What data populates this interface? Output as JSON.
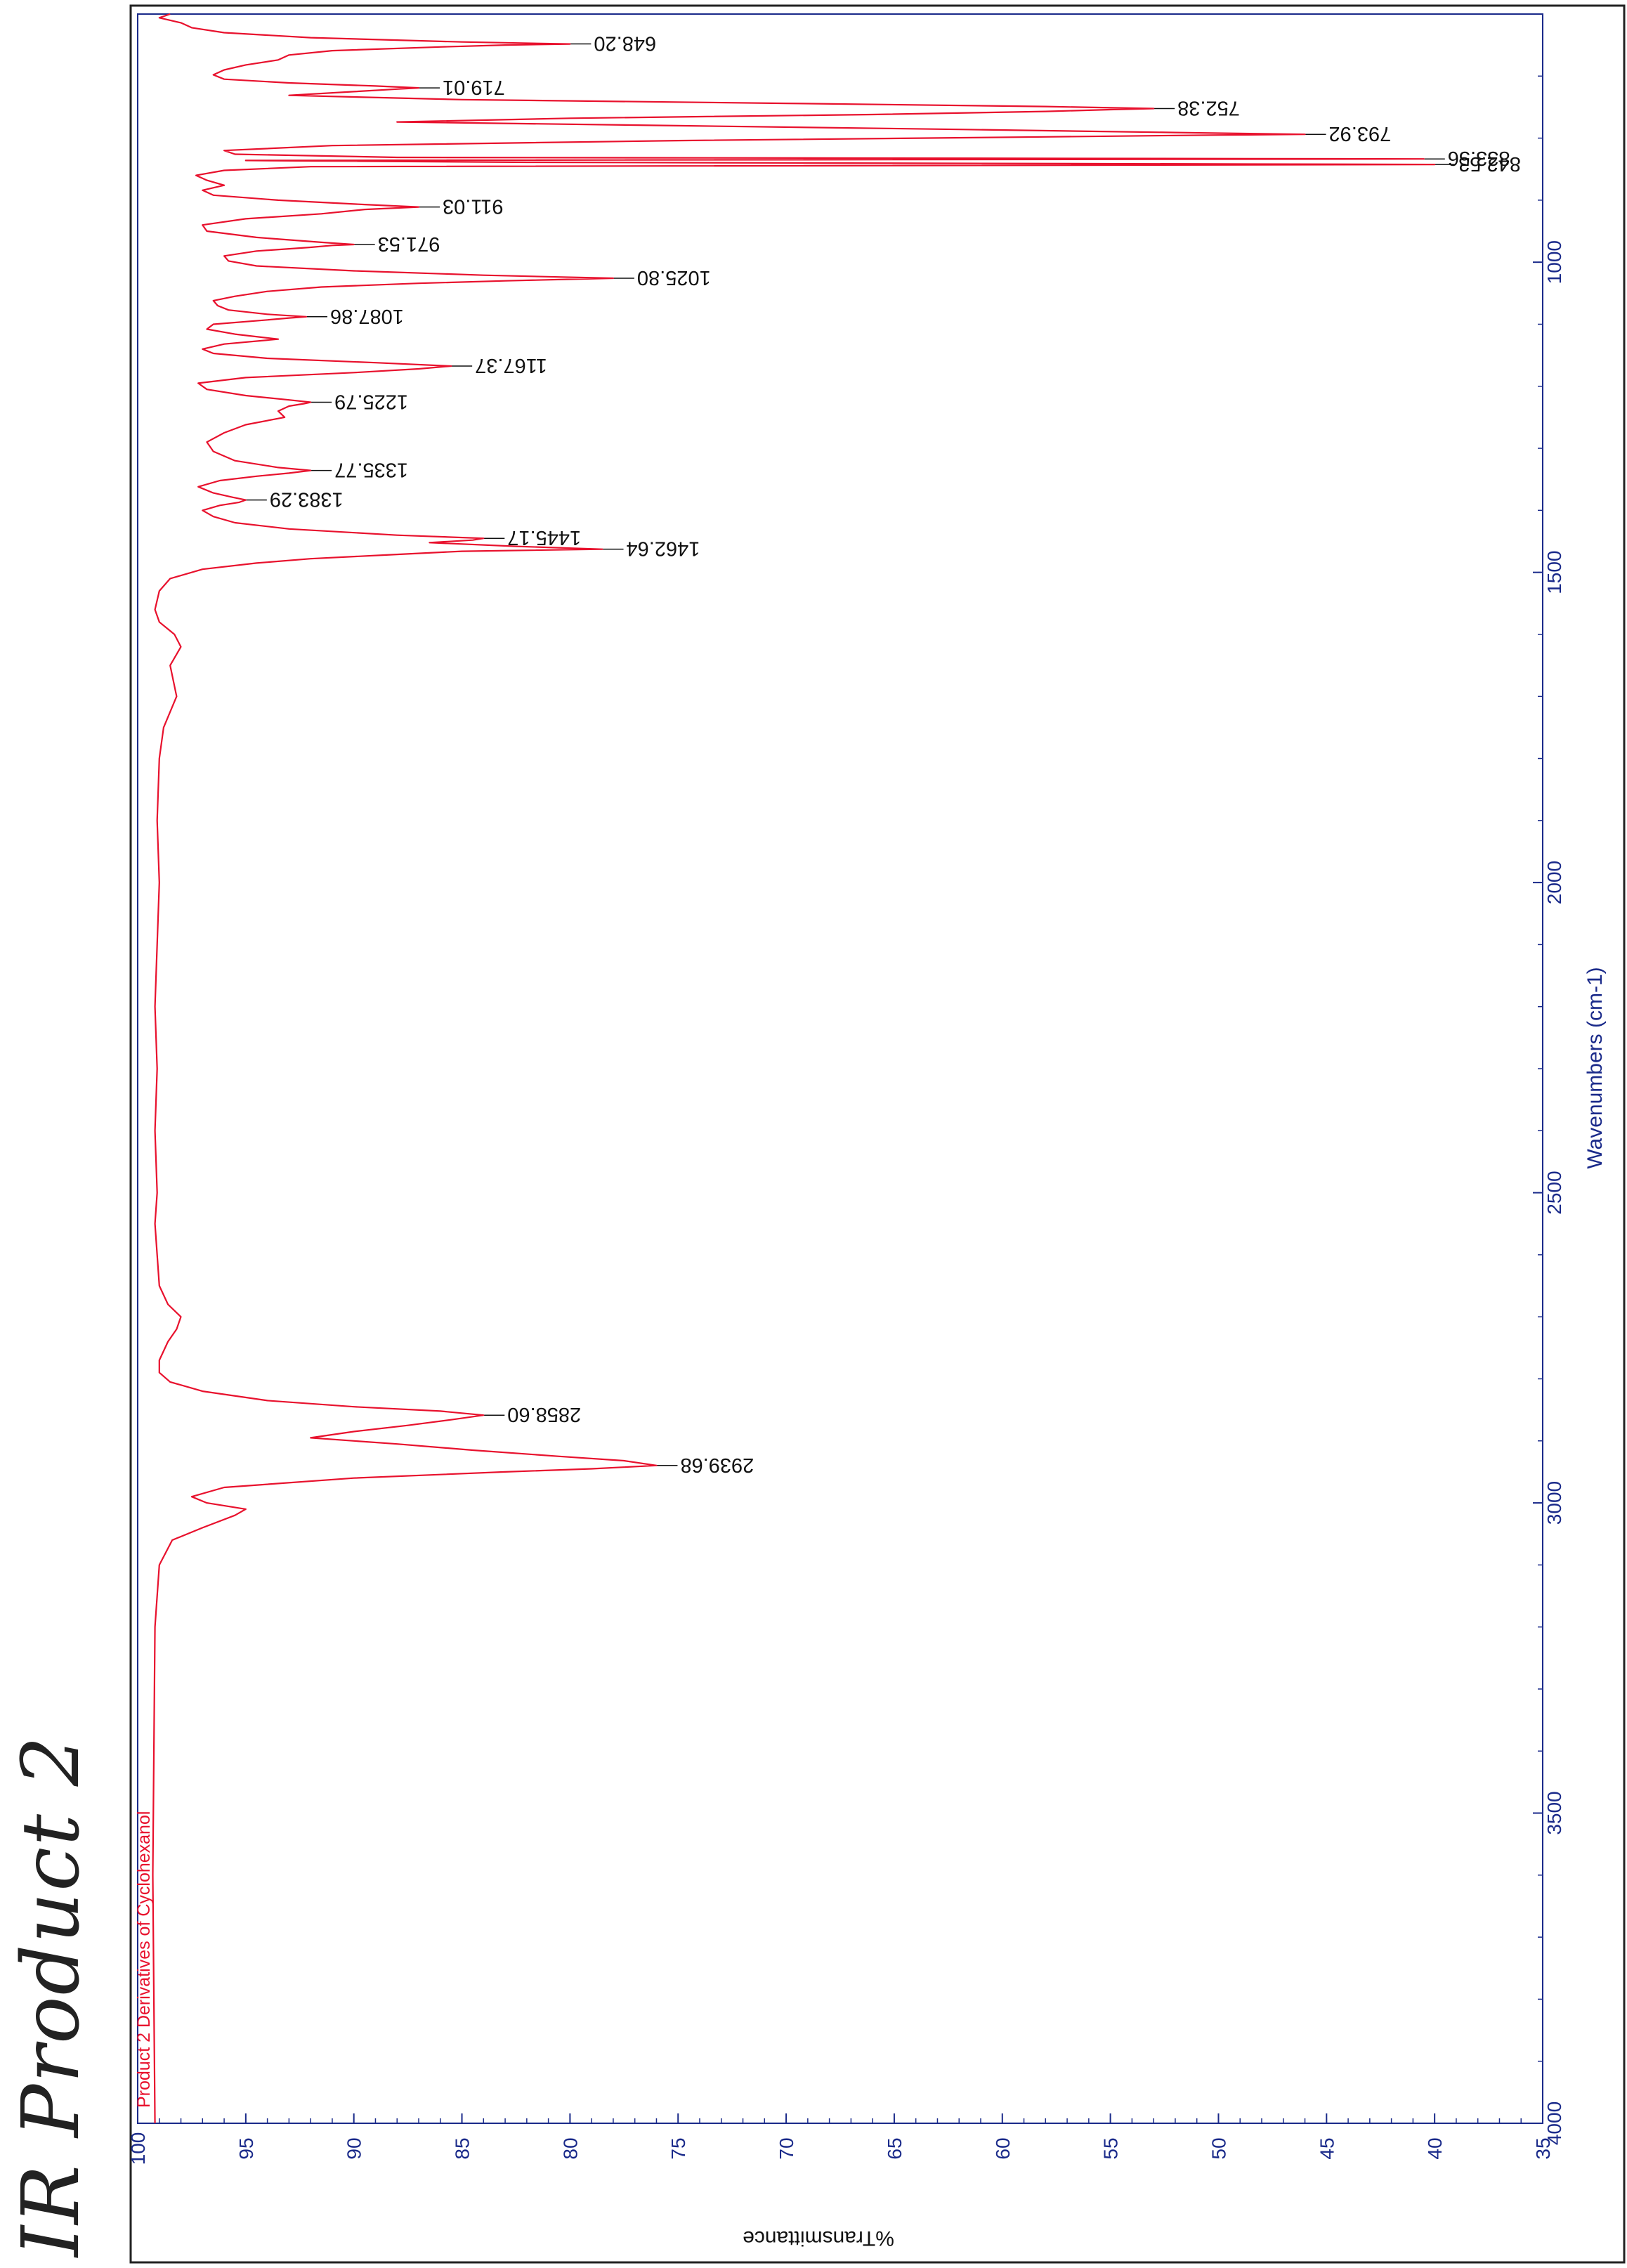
{
  "page": {
    "handwritten_title": "IR Product 2"
  },
  "chart_data": {
    "type": "line",
    "title": "",
    "sample_name": "Product 2 Derivatives of Cyclohexanol",
    "xlabel": "Wavenumbers (cm-1)",
    "ylabel": "%Transmittance",
    "xlim": [
      4000,
      600
    ],
    "ylim": [
      35,
      100
    ],
    "x_ticks": [
      "4000",
      "3500",
      "3000",
      "2500",
      "2000",
      "1500",
      "1000"
    ],
    "y_ticks": [
      "100",
      "95",
      "90",
      "85",
      "80",
      "75",
      "70",
      "65",
      "60",
      "55",
      "50",
      "45",
      "40",
      "35"
    ],
    "grid": false,
    "colors": {
      "spectrum": "#e8112d",
      "axis": "#1a2a8a",
      "frame": "#222222",
      "annotation": "#111111"
    },
    "series": [
      {
        "name": "Product 2 Derivatives of Cyclohexanol",
        "x": [
          4000,
          3600,
          3200,
          3100,
          3060,
          3040,
          3020,
          3010,
          3000,
          2990,
          2975,
          2960,
          2950,
          2945,
          2939.68,
          2932,
          2925,
          2915,
          2905,
          2895,
          2885,
          2875,
          2866,
          2858.6,
          2852,
          2845,
          2835,
          2820,
          2805,
          2790,
          2770,
          2740,
          2720,
          2700,
          2680,
          2650,
          2600,
          2550,
          2500,
          2400,
          2300,
          2200,
          2100,
          2000,
          1900,
          1800,
          1750,
          1700,
          1650,
          1620,
          1600,
          1580,
          1560,
          1530,
          1510,
          1495,
          1485,
          1478,
          1472,
          1466,
          1462.64,
          1458,
          1452,
          1448,
          1445.17,
          1440,
          1430,
          1420,
          1410,
          1400,
          1392,
          1387,
          1383.29,
          1379,
          1372,
          1362,
          1352,
          1345,
          1340,
          1335.77,
          1331,
          1320,
          1305,
          1290,
          1275,
          1262,
          1250,
          1240,
          1232,
          1228,
          1225.79,
          1222,
          1215,
          1205,
          1195,
          1186,
          1178,
          1172,
          1167.37,
          1162,
          1155,
          1147,
          1140,
          1132,
          1124,
          1116,
          1108,
          1100,
          1093,
          1090,
          1087.86,
          1084,
          1077,
          1070,
          1062,
          1055,
          1047,
          1040,
          1034,
          1030,
          1025.8,
          1021,
          1014,
          1006,
          998,
          990,
          982,
          976,
          973,
          971.53,
          968,
          960,
          950,
          940,
          930,
          922,
          915,
          911.03,
          907,
          900,
          892,
          884,
          876,
          868,
          860,
          852,
          846,
          842.53,
          839,
          836,
          833.56,
          831,
          826,
          820,
          812,
          804,
          798,
          795,
          793.92,
          791,
          786,
          780,
          774,
          768,
          762,
          757,
          754,
          752.38,
          749,
          744,
          738,
          731,
          725,
          721,
          719.01,
          716,
          711,
          705,
          698,
          690,
          682,
          674,
          666,
          659,
          653,
          650,
          648.2,
          645,
          638,
          630,
          622,
          614,
          606,
          600
        ],
        "values": [
          99.2,
          99.3,
          99.2,
          99.0,
          98.4,
          97.0,
          95.5,
          95.0,
          96.8,
          97.5,
          96.0,
          90.0,
          83.0,
          79.0,
          76.0,
          77.5,
          80.5,
          84.5,
          88.0,
          92.0,
          90.0,
          87.5,
          85.5,
          84.0,
          86.0,
          90.0,
          94.0,
          97.0,
          98.5,
          99.0,
          99.0,
          98.6,
          98.2,
          98.0,
          98.6,
          99.0,
          99.1,
          99.2,
          99.1,
          99.2,
          99.1,
          99.2,
          99.1,
          99.0,
          99.1,
          99.0,
          98.8,
          98.2,
          98.5,
          98.0,
          98.3,
          99.0,
          99.2,
          99.0,
          98.5,
          97.0,
          94.5,
          92.0,
          88.5,
          85.0,
          78.5,
          82.5,
          86.5,
          84.5,
          84.0,
          88.0,
          93.0,
          95.5,
          96.5,
          97.0,
          96.2,
          95.3,
          95.0,
          95.6,
          96.5,
          97.2,
          96.2,
          94.5,
          93.0,
          92.0,
          93.5,
          95.5,
          96.5,
          96.8,
          96.0,
          95.0,
          93.2,
          93.5,
          93.0,
          92.3,
          92.0,
          93.0,
          95.0,
          96.8,
          97.2,
          95.0,
          90.0,
          87.0,
          85.5,
          89.0,
          94.0,
          96.5,
          97.0,
          96.0,
          93.5,
          95.5,
          96.8,
          96.5,
          94.0,
          93.0,
          92.2,
          94.0,
          95.8,
          96.3,
          96.5,
          95.5,
          94.0,
          91.5,
          87.0,
          83.0,
          78.0,
          84.0,
          90.0,
          94.5,
          95.8,
          96.0,
          94.5,
          92.0,
          91.0,
          90.0,
          91.5,
          94.5,
          96.8,
          97.0,
          95.0,
          91.5,
          89.5,
          87.0,
          89.5,
          93.5,
          96.5,
          97.0,
          96.0,
          96.8,
          97.3,
          96.0,
          92.0,
          40.0,
          82.0,
          95.0,
          40.5,
          88.0,
          95.5,
          96.0,
          91.0,
          75.0,
          58.0,
          50.0,
          46.0,
          52.0,
          62.0,
          75.0,
          88.0,
          80.0,
          66.0,
          58.0,
          55.0,
          53.0,
          58.0,
          70.0,
          85.0,
          93.0,
          90.0,
          88.0,
          87.0,
          89.0,
          93.0,
          96.0,
          96.5,
          96.0,
          95.0,
          93.5,
          93.0,
          91.0,
          86.0,
          83.0,
          80.0,
          85.0,
          92.0,
          96.0,
          97.5,
          98.0,
          99.0,
          98.5
        ]
      }
    ],
    "annotations": [
      {
        "label": "2939.68",
        "x": 2939.68,
        "y": 76.0
      },
      {
        "label": "2858.60",
        "x": 2858.6,
        "y": 84.0
      },
      {
        "label": "1462.64",
        "x": 1462.64,
        "y": 78.5
      },
      {
        "label": "1445.17",
        "x": 1445.17,
        "y": 84.0
      },
      {
        "label": "1383.29",
        "x": 1383.29,
        "y": 95.0
      },
      {
        "label": "1335.77",
        "x": 1335.77,
        "y": 92.0
      },
      {
        "label": "1225.79",
        "x": 1225.79,
        "y": 92.0
      },
      {
        "label": "1167.37",
        "x": 1167.37,
        "y": 85.5
      },
      {
        "label": "1087.86",
        "x": 1087.86,
        "y": 92.2
      },
      {
        "label": "1025.80",
        "x": 1025.8,
        "y": 78.0
      },
      {
        "label": "971.53",
        "x": 971.53,
        "y": 90.0
      },
      {
        "label": "911.03",
        "x": 911.03,
        "y": 87.0
      },
      {
        "label": "842.53",
        "x": 842.53,
        "y": 40.0
      },
      {
        "label": "833.56",
        "x": 833.56,
        "y": 40.5
      },
      {
        "label": "793.92",
        "x": 793.92,
        "y": 46.0
      },
      {
        "label": "752.38",
        "x": 752.38,
        "y": 53.0
      },
      {
        "label": "719.01",
        "x": 719.01,
        "y": 87.0
      },
      {
        "label": "648.20",
        "x": 648.2,
        "y": 80.0
      }
    ]
  }
}
